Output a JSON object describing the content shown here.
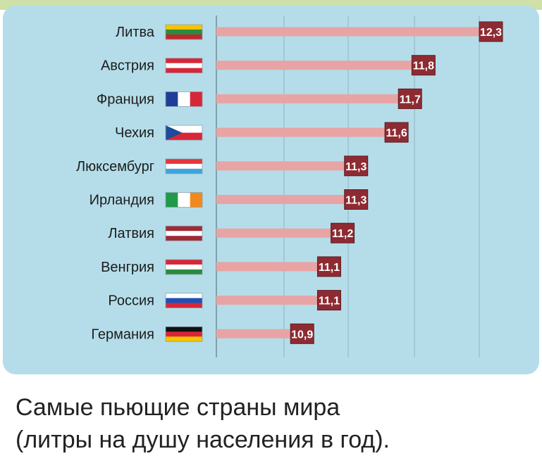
{
  "chart_data": {
    "type": "bar",
    "orientation": "horizontal",
    "categories": [
      "Литва",
      "Австрия",
      "Франция",
      "Чехия",
      "Люксембург",
      "Ирландия",
      "Латвия",
      "Венгрия",
      "Россия",
      "Германия"
    ],
    "values": [
      12.3,
      11.8,
      11.7,
      11.6,
      11.3,
      11.3,
      11.2,
      11.1,
      11.1,
      10.9
    ],
    "value_labels": [
      "12,3",
      "11,8",
      "11,7",
      "11,6",
      "11,3",
      "11,3",
      "11,2",
      "11,1",
      "11,1",
      "10,9"
    ],
    "grid": true,
    "colors": {
      "bar": "#e8a4a4",
      "label_box": "#8e2b32",
      "background": "#b5dde9",
      "grid": "#8fb3c2"
    }
  },
  "flags": [
    {
      "name": "lithuania-flag-icon",
      "stripes": [
        "#f5c400",
        "#2a8a3e",
        "#c1272d"
      ],
      "dir": "h"
    },
    {
      "name": "austria-flag-icon",
      "stripes": [
        "#d72638",
        "#ffffff",
        "#d72638"
      ],
      "dir": "h"
    },
    {
      "name": "france-flag-icon",
      "stripes": [
        "#1e3d9a",
        "#ffffff",
        "#d72638"
      ],
      "dir": "v"
    },
    {
      "name": "czech-flag-icon",
      "stripes": [
        "#ffffff",
        "#d72638"
      ],
      "dir": "h",
      "triangle": "#1e4a9a"
    },
    {
      "name": "luxembourg-flag-icon",
      "stripes": [
        "#e6343a",
        "#ffffff",
        "#3fa4dc"
      ],
      "dir": "h"
    },
    {
      "name": "ireland-flag-icon",
      "stripes": [
        "#1f9a4a",
        "#ffffff",
        "#f08a1e"
      ],
      "dir": "v"
    },
    {
      "name": "latvia-flag-icon",
      "stripes": [
        "#9e2a36",
        "#ffffff",
        "#9e2a36"
      ],
      "dir": "h"
    },
    {
      "name": "hungary-flag-icon",
      "stripes": [
        "#d72638",
        "#ffffff",
        "#2a8a3e"
      ],
      "dir": "h"
    },
    {
      "name": "russia-flag-icon",
      "stripes": [
        "#ffffff",
        "#1f4fb5",
        "#d72638"
      ],
      "dir": "h"
    },
    {
      "name": "germany-flag-icon",
      "stripes": [
        "#111111",
        "#d72638",
        "#f5c400"
      ],
      "dir": "h"
    }
  ],
  "caption": {
    "line1": "Самые пьющие страны мира",
    "line2": "(литры на душу населения в год)."
  }
}
